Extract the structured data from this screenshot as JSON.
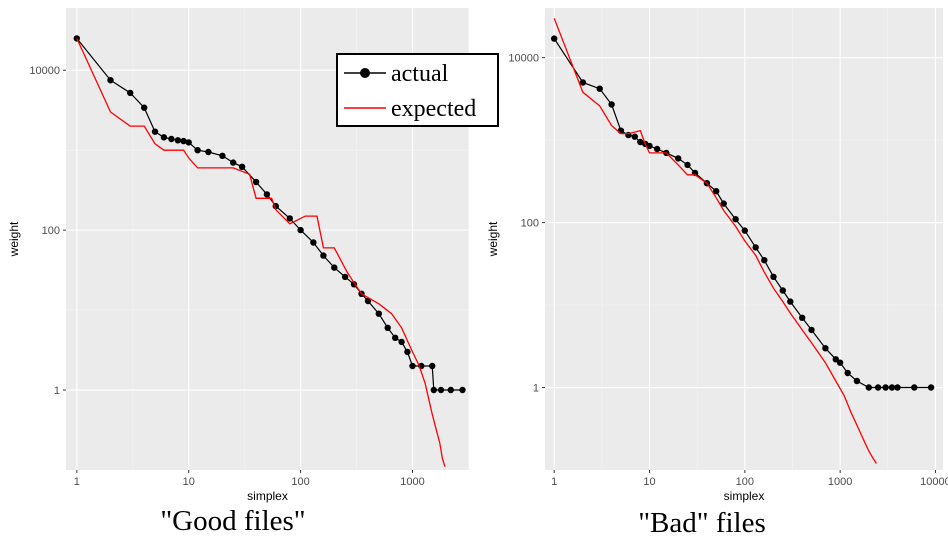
{
  "chart_data": [
    {
      "type": "line",
      "caption": "\"Good files\"",
      "xlabel": "simplex",
      "ylabel": "weight",
      "xscale": "log10",
      "yscale": "log10",
      "xlim": [
        0.8,
        3200
      ],
      "ylim": [
        0.1,
        60000
      ],
      "xticks": [
        1,
        10,
        100,
        1000
      ],
      "xtick_labels": [
        "1",
        "10",
        "100",
        "1000"
      ],
      "yticks": [
        1,
        100,
        10000
      ],
      "ytick_labels": [
        "1",
        "100",
        "10000"
      ],
      "grid": true,
      "background": "#ebebeb",
      "series": [
        {
          "name": "actual",
          "color": "#000000",
          "markers": true,
          "x": [
            1,
            2,
            3,
            4,
            5,
            6,
            7,
            8,
            9,
            10,
            12,
            15,
            20,
            25,
            30,
            40,
            50,
            60,
            80,
            100,
            130,
            160,
            200,
            250,
            300,
            350,
            400,
            500,
            600,
            700,
            800,
            900,
            1000,
            1200,
            1500,
            1550,
            1800,
            2200,
            2800
          ],
          "y": [
            25000,
            7500,
            5200,
            3400,
            1700,
            1450,
            1380,
            1330,
            1300,
            1250,
            1000,
            950,
            850,
            700,
            620,
            400,
            280,
            200,
            140,
            100,
            70,
            48,
            34,
            26,
            21,
            16,
            13,
            9,
            6,
            4.5,
            4,
            3,
            2,
            2,
            2,
            1,
            1,
            1,
            1
          ]
        },
        {
          "name": "expected",
          "color": "#ff0000",
          "markers": false,
          "x": [
            1,
            2,
            3,
            4,
            5,
            6,
            9,
            10,
            12,
            15,
            25,
            35,
            40,
            55,
            60,
            80,
            110,
            140,
            160,
            200,
            260,
            300,
            350,
            500,
            650,
            800,
            1000,
            1150,
            1300,
            1500,
            1650,
            1750,
            1850,
            1950
          ],
          "y": [
            25000,
            3000,
            2000,
            2000,
            1200,
            1000,
            1000,
            800,
            600,
            600,
            600,
            500,
            250,
            250,
            180,
            120,
            150,
            150,
            60,
            60,
            30,
            22,
            16,
            12,
            9,
            6,
            3,
            2,
            1.2,
            0.5,
            0.3,
            0.22,
            0.14,
            0.11
          ]
        }
      ],
      "legend": {
        "position": "top-right",
        "entries": [
          "actual",
          "expected"
        ]
      }
    },
    {
      "type": "line",
      "caption": "\"Bad\" files",
      "xlabel": "simplex",
      "ylabel": "weight",
      "xscale": "log10",
      "yscale": "log10",
      "xlim": [
        0.8,
        12000
      ],
      "ylim": [
        0.1,
        40000
      ],
      "xticks": [
        1,
        10,
        100,
        1000,
        10000
      ],
      "xtick_labels": [
        "1",
        "10",
        "100",
        "1000",
        "10000"
      ],
      "yticks": [
        1,
        100,
        10000
      ],
      "ytick_labels": [
        "1",
        "100",
        "10000"
      ],
      "grid": true,
      "background": "#ebebeb",
      "series": [
        {
          "name": "actual",
          "color": "#000000",
          "markers": true,
          "x": [
            1,
            2,
            3,
            4,
            5,
            6,
            7,
            8,
            9,
            10,
            12,
            15,
            20,
            25,
            30,
            40,
            50,
            60,
            80,
            100,
            130,
            160,
            200,
            250,
            300,
            400,
            500,
            700,
            900,
            1000,
            1200,
            1500,
            2000,
            2500,
            3000,
            3500,
            4000,
            6000,
            9000
          ],
          "y": [
            17000,
            5000,
            4200,
            2700,
            1300,
            1150,
            1100,
            950,
            900,
            850,
            780,
            700,
            600,
            500,
            400,
            300,
            240,
            170,
            110,
            80,
            50,
            35,
            22,
            15,
            11,
            7,
            5,
            3,
            2.2,
            2,
            1.5,
            1.2,
            1,
            1,
            1,
            1,
            1,
            1,
            1
          ]
        },
        {
          "name": "expected",
          "color": "#ff0000",
          "markers": false,
          "x": [
            1,
            2,
            3,
            4,
            5,
            6,
            8,
            9,
            10,
            12,
            15,
            20,
            25,
            30,
            40,
            50,
            60,
            80,
            100,
            130,
            160,
            200,
            250,
            300,
            400,
            500,
            700,
            900,
            1100,
            1300,
            1500,
            1800,
            2000,
            2200,
            2400
          ],
          "y": [
            30000,
            3800,
            2600,
            1500,
            1200,
            1200,
            1300,
            900,
            700,
            700,
            700,
            500,
            380,
            380,
            300,
            200,
            140,
            90,
            60,
            40,
            25,
            16,
            11,
            8,
            5,
            3.5,
            2,
            1.2,
            0.8,
            0.5,
            0.35,
            0.22,
            0.17,
            0.14,
            0.12
          ]
        }
      ]
    }
  ]
}
